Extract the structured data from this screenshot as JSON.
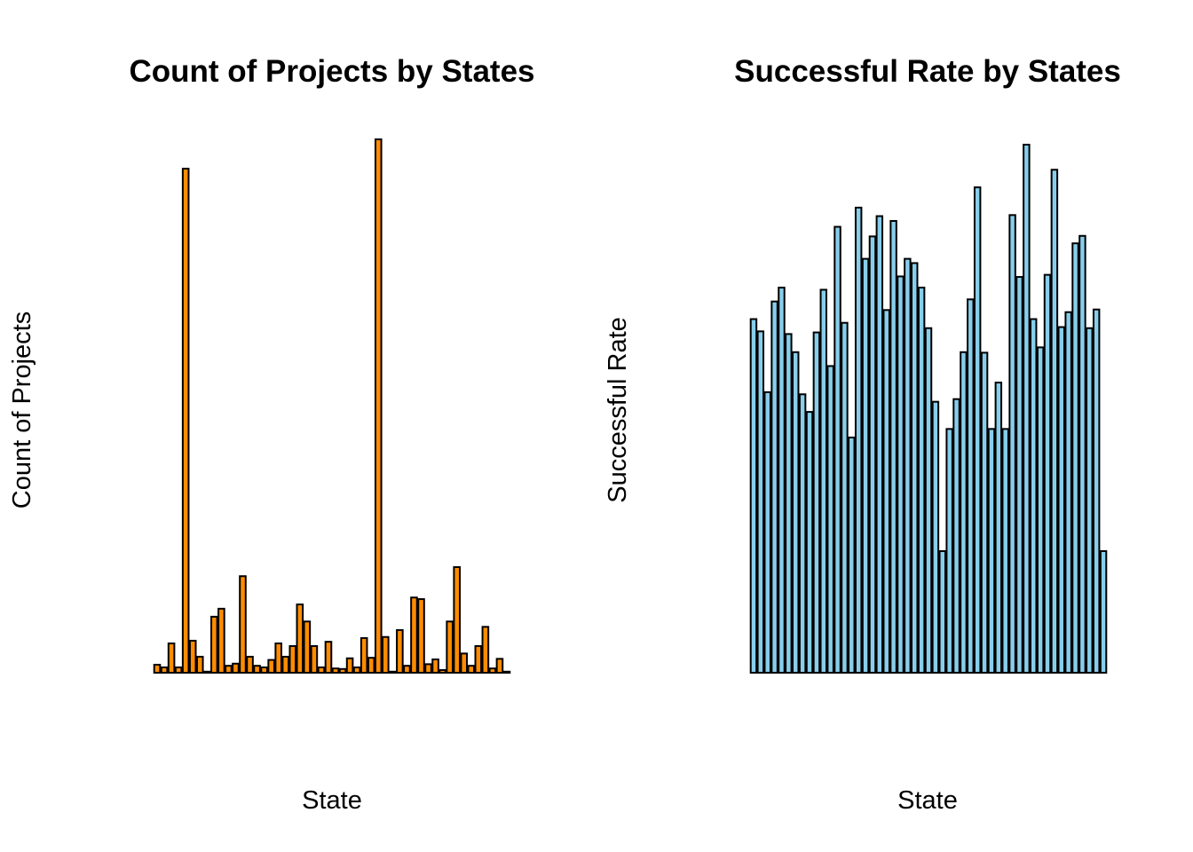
{
  "chart_data": [
    {
      "type": "bar",
      "title": "Count of Projects by States",
      "xlabel": "State",
      "ylabel": "Count of Projects",
      "color": "#FF8C00",
      "edge_color": "#000000",
      "ylim": [
        0,
        100
      ],
      "values": [
        1.5,
        1,
        5.5,
        1,
        94.5,
        6,
        3,
        0.2,
        10.5,
        12,
        1.3,
        1.7,
        18.1,
        3,
        1.3,
        1,
        2.4,
        5.5,
        3,
        5,
        12.8,
        9.6,
        5,
        1,
        5.8,
        0.8,
        0.7,
        2.7,
        1,
        6.5,
        2.8,
        100,
        6.7,
        0.2,
        8,
        1.3,
        14.1,
        13.8,
        1.6,
        2.5,
        0.5,
        9.6,
        19.8,
        3.6,
        1.3,
        5,
        8.6,
        0.8,
        2.6,
        0.2
      ]
    },
    {
      "type": "bar",
      "title": "Successful Rate by States",
      "xlabel": "State",
      "ylabel": "Successful Rate",
      "color": "#87CEEB",
      "edge_color": "#000000",
      "ylim": [
        0,
        100
      ],
      "values": [
        66.3,
        64,
        52.6,
        69.6,
        72.2,
        63.5,
        60.1,
        52.2,
        48.9,
        63.8,
        71.8,
        57.5,
        83.6,
        65.6,
        44.1,
        87.2,
        77.6,
        81.8,
        85.6,
        68,
        84.7,
        74.3,
        77.6,
        76.8,
        72.2,
        64.6,
        50.8,
        22.8,
        45.7,
        51.3,
        60.1,
        70,
        91,
        60,
        45.7,
        54.4,
        45.7,
        85.8,
        74.2,
        99,
        66.3,
        61,
        74.6,
        94.3,
        64.8,
        67.6,
        80.5,
        81.9,
        64.6,
        68.1,
        22.8
      ]
    }
  ]
}
